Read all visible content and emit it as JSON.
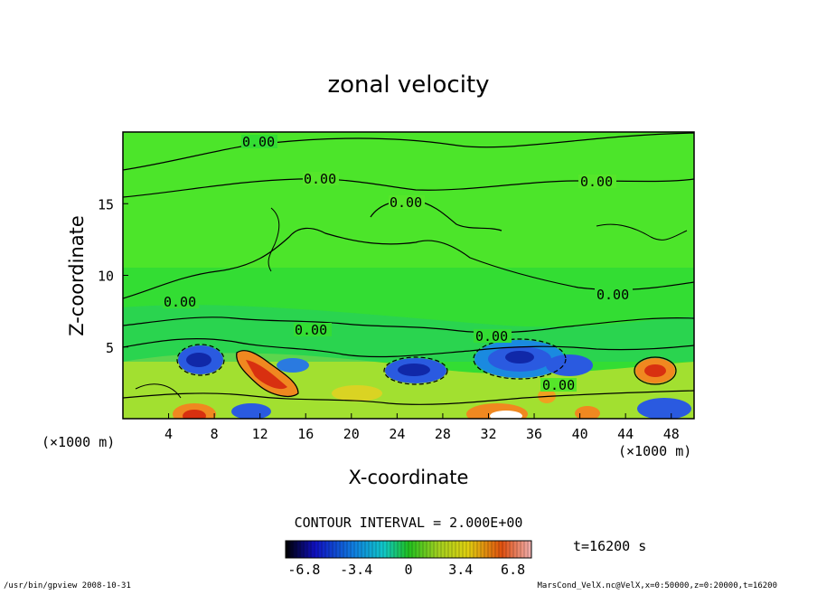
{
  "chart_data": {
    "type": "heatmap",
    "title": "zonal velocity",
    "xlabel": "X-coordinate",
    "ylabel": "Z-coordinate",
    "x_unit": "(×1000 m)",
    "y_unit": "(×1000 m)",
    "xlim": [
      0,
      50
    ],
    "ylim": [
      0,
      20
    ],
    "x_ticks": [
      4,
      8,
      12,
      16,
      20,
      24,
      28,
      32,
      36,
      40,
      44,
      48
    ],
    "y_ticks": [
      5,
      10,
      15
    ],
    "contour_interval_text": "CONTOUR INTERVAL = 2.000E+00",
    "contour_labels": [
      "0.00",
      "0.00",
      "0.00",
      "0.00",
      "0.00",
      "0.00",
      "0.00",
      "0.00",
      "0.00"
    ],
    "colorbar": {
      "range": [
        -8,
        8
      ],
      "ticks": [
        "-6.8",
        "-3.4",
        "0",
        "3.4",
        "6.8"
      ]
    },
    "time_label": "t=16200 s",
    "colors": {
      "field_background": "#1fd61f",
      "negative": "#1a38d6",
      "positive": "#e8401a"
    }
  },
  "footer": {
    "left": "/usr/bin/gpview   2008-10-31",
    "right": "MarsCond_VelX.nc@VelX,x=0:50000,z=0:20000,t=16200"
  }
}
